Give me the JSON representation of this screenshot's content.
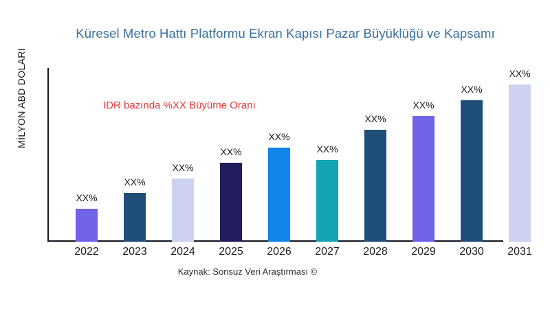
{
  "page": {
    "background": "#FFFFFF"
  },
  "chart_data": {
    "type": "bar",
    "title": "Küresel Metro Hattı Platformu Ekran Kapısı Pazar Büyüklüğü ve Kapsamı",
    "xlabel": "",
    "ylabel": "MİLYON ABD DOLARI",
    "categories": [
      "2022",
      "2023",
      "2024",
      "2025",
      "2026",
      "2027",
      "2028",
      "2029",
      "2030",
      "2031"
    ],
    "values_pct_of_max_bar": [
      21,
      31,
      40,
      50,
      60,
      52,
      71,
      80,
      90,
      100
    ],
    "bar_labels": [
      "XX%",
      "XX%",
      "XX%",
      "XX%",
      "XX%",
      "XX%",
      "XX%",
      "XX%",
      "XX%",
      "XX%"
    ],
    "bar_colors": [
      "#6F63E8",
      "#1F4E79",
      "#CCD2EF",
      "#221D5C",
      "#1385E8",
      "#14A5B4",
      "#1F4E79",
      "#6F63E8",
      "#1F4E79",
      "#CCD2EF"
    ],
    "y_axis_tick_labels": [],
    "grid": false,
    "legend": false,
    "ylim_note": "axis unlabeled; bar values shown only as XX% placeholders"
  },
  "annotation": {
    "text": "IDR bazında %XX Büyüme Oranı",
    "color": "#E3383C"
  },
  "source_caption": "Kaynak: Sonsuz Veri Araştırması ©",
  "colors": {
    "title": "#38709E",
    "axis": "#14141E",
    "text": "#1A1A1A"
  }
}
